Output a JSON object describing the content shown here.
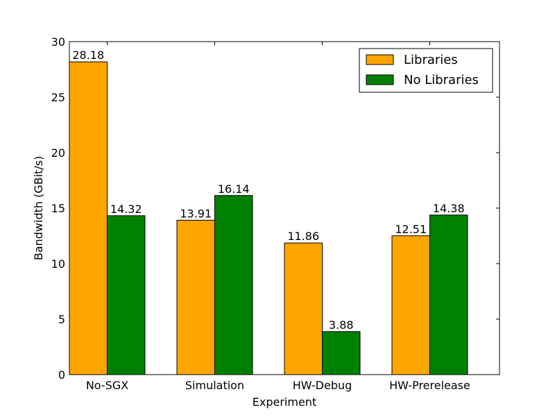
{
  "chart_data": {
    "type": "bar",
    "title": "",
    "xlabel": "Experiment",
    "ylabel": "Bandwidth (GBit/s)",
    "categories": [
      "No-SGX",
      "Simulation",
      "HW-Debug",
      "HW-Prerelease"
    ],
    "series": [
      {
        "name": "Libraries",
        "color": "#ffa500",
        "values": [
          28.18,
          13.91,
          11.86,
          12.51
        ]
      },
      {
        "name": "No Libraries",
        "color": "#008000",
        "values": [
          14.32,
          16.14,
          3.88,
          14.38
        ]
      }
    ],
    "ylim": [
      0,
      30
    ],
    "yticks": [
      0,
      5,
      10,
      15,
      20,
      25,
      30
    ],
    "data_labels": true,
    "grid": false,
    "legend": "top-right"
  }
}
